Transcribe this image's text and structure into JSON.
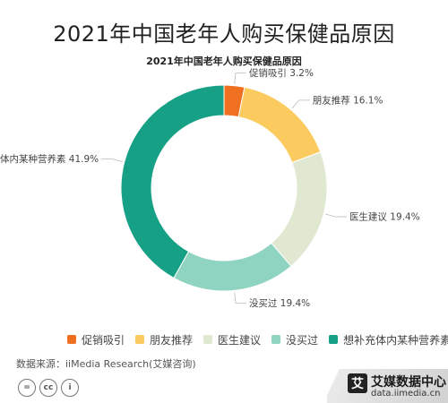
{
  "header": {
    "title": "2021年中国老年人购买保健品原因"
  },
  "chart_data": {
    "type": "pie",
    "donut": true,
    "title": "2021年中国老年人购买保健品原因",
    "unit": "%",
    "slices": [
      {
        "label": "促销吸引",
        "value": 3.2,
        "color": "#f07022"
      },
      {
        "label": "朋友推荐",
        "value": 16.1,
        "color": "#fbcb5f"
      },
      {
        "label": "医生建议",
        "value": 19.4,
        "color": "#e1e8d2"
      },
      {
        "label": "没买过",
        "value": 19.4,
        "color": "#8fd4c0"
      },
      {
        "label": "想补充体内某种营养素",
        "value": 41.9,
        "color": "#16a085"
      }
    ],
    "legend_position": "bottom"
  },
  "footer": {
    "source": "数据来源：iiMedia Research(艾媒咨询)",
    "license_icons": [
      "=",
      "cc",
      "i"
    ],
    "brand_logo": "艾",
    "brand_name": "艾媒数据中心",
    "brand_url": "data.iimedia.cn"
  }
}
